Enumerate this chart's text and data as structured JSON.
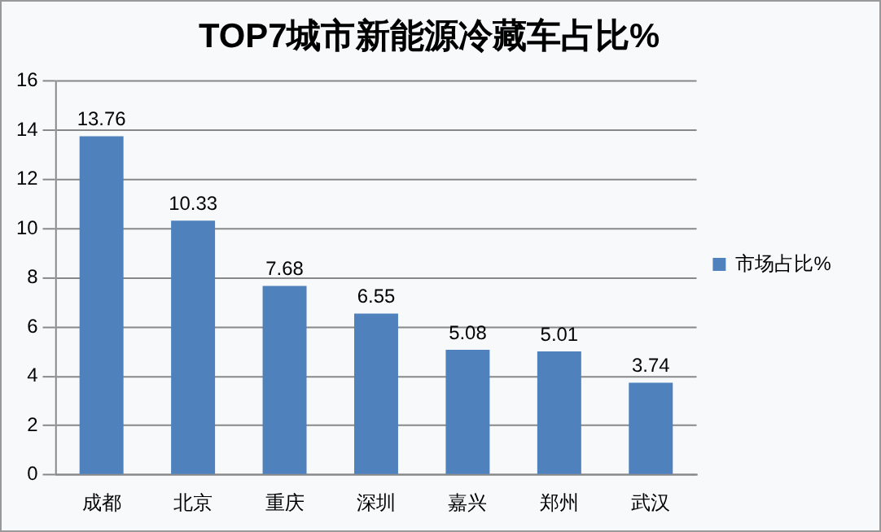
{
  "chart_data": {
    "type": "bar",
    "title": "TOP7城市新能源冷藏车占比%",
    "categories": [
      "成都",
      "北京",
      "重庆",
      "深圳",
      "嘉兴",
      "郑州",
      "武汉"
    ],
    "series": [
      {
        "name": "市场占比%",
        "color": "#4f81bd",
        "values": [
          13.76,
          10.33,
          7.68,
          6.55,
          5.08,
          5.01,
          3.74
        ]
      }
    ],
    "ylim": [
      0,
      16
    ],
    "yticks": [
      0,
      2,
      4,
      6,
      8,
      10,
      12,
      14,
      16
    ],
    "grid": "y",
    "legend": "right",
    "data_labels": true
  }
}
